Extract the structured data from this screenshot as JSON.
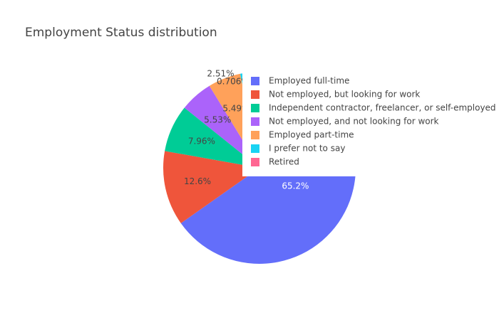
{
  "chart_data": {
    "type": "pie",
    "title": "Employment Status distribution",
    "direction": "clockwise",
    "start_angle_deg": 90,
    "legend_position": "right",
    "slices": [
      {
        "label": "Employed full-time",
        "value": 65.2,
        "text": "65.2%",
        "color": "#636efa",
        "text_color": "#ffffff",
        "text_position": "inside"
      },
      {
        "label": "Not employed, but looking for work",
        "value": 12.6,
        "text": "12.6%",
        "color": "#ef553b",
        "text_color": "#444444",
        "text_position": "inside"
      },
      {
        "label": "Independent contractor, freelancer, or self-employed",
        "value": 7.96,
        "text": "7.96%",
        "color": "#00cc96",
        "text_color": "#444444",
        "text_position": "inside"
      },
      {
        "label": "Not employed, and not looking for work",
        "value": 5.53,
        "text": "5.53%",
        "color": "#ab63fa",
        "text_color": "#444444",
        "text_position": "inside"
      },
      {
        "label": "Employed part-time",
        "value": 5.49,
        "text": "5.49%",
        "color": "#ffa15a",
        "text_color": "#444444",
        "text_position": "inside"
      },
      {
        "label": "I prefer not to say",
        "value": 2.51,
        "text": "2.51%",
        "color": "#19d3f3",
        "text_color": "#444444",
        "text_position": "outside"
      },
      {
        "label": "Retired",
        "value": 0.706,
        "text": "0.706%",
        "color": "#ff6692",
        "text_color": "#444444",
        "text_position": "outside"
      }
    ]
  }
}
